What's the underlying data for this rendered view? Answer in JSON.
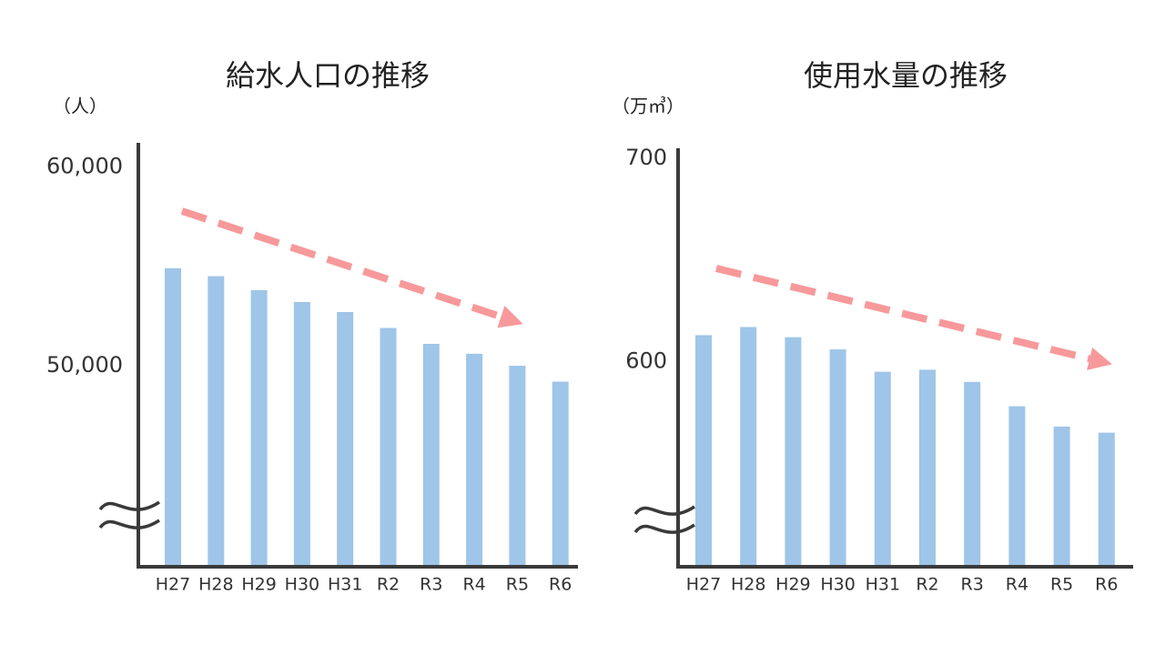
{
  "chart_data": [
    {
      "type": "bar",
      "title": "給水人口の推移",
      "unit": "（人）",
      "categories": [
        "H27",
        "H28",
        "H29",
        "H30",
        "H31",
        "R2",
        "R3",
        "R4",
        "R5",
        "R6"
      ],
      "values": [
        54900,
        54500,
        53800,
        53200,
        52700,
        51900,
        51100,
        50600,
        50000,
        49200
      ],
      "color": "#9fc5e8",
      "ylim": [
        39900,
        61200
      ],
      "yticks": [
        {
          "value": 50000,
          "label": "50,000"
        },
        {
          "value": 60000,
          "label": "60,000"
        }
      ]
    },
    {
      "type": "bar",
      "title": "使用水量の推移",
      "unit": "（万㎥）",
      "categories": [
        "H27",
        "H28",
        "H29",
        "H30",
        "H31",
        "R2",
        "R3",
        "R4",
        "R5",
        "R6"
      ],
      "values": [
        613,
        617,
        612,
        606,
        595,
        596,
        590,
        578,
        568,
        565
      ],
      "color": "#9fc5e8",
      "ylim": [
        499,
        705
      ],
      "yticks": [
        600,
        700
      ]
    }
  ]
}
